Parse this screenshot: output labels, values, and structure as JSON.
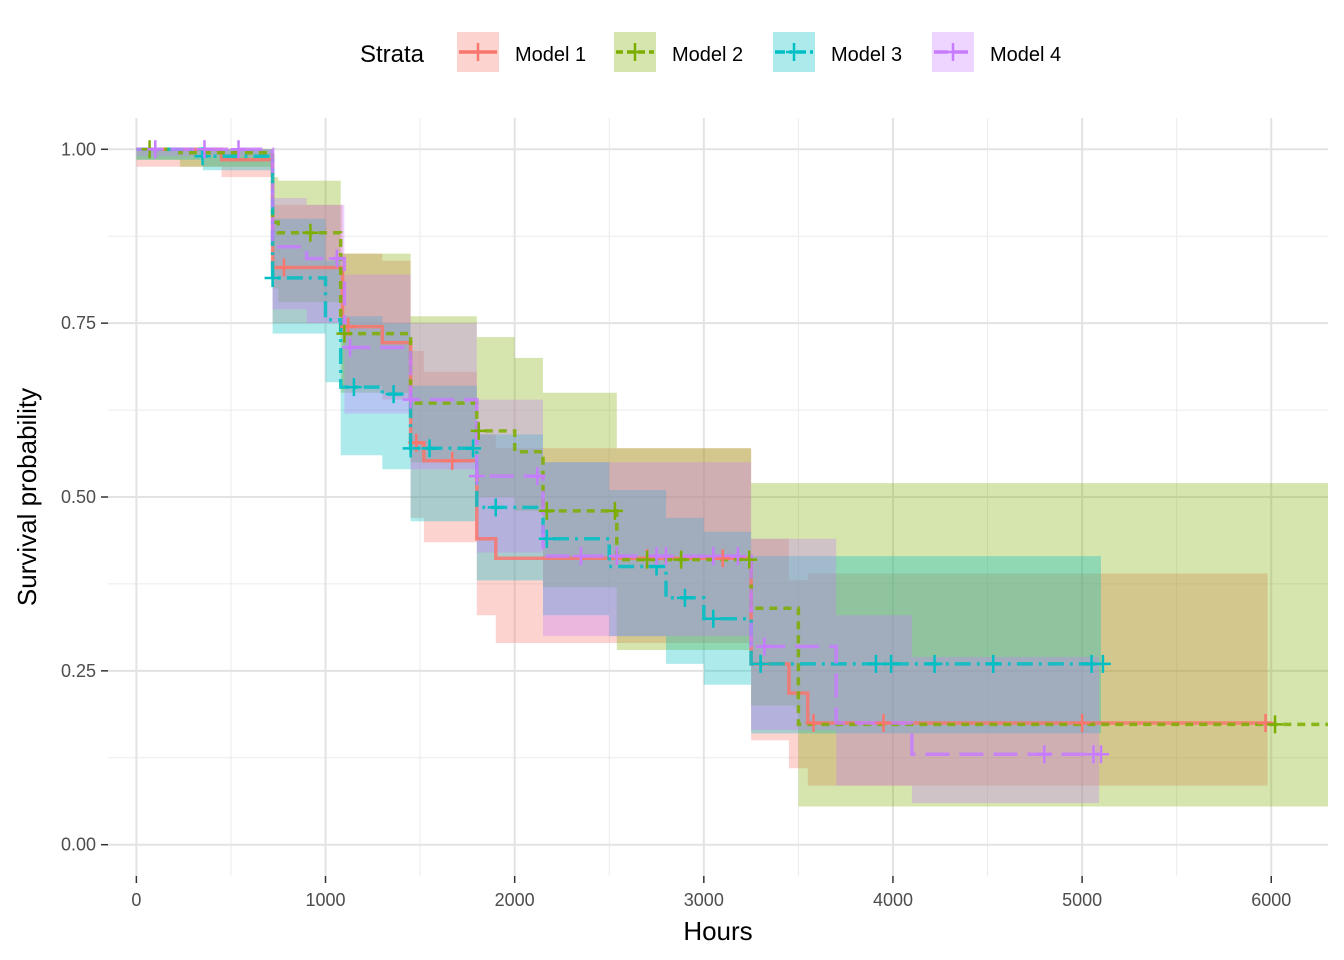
{
  "chart_data": {
    "type": "step",
    "xlabel": "Hours",
    "ylabel": "Survival probability",
    "xlim": [
      -150,
      6300
    ],
    "ylim": [
      -0.045,
      1.045
    ],
    "x_ticks": [
      0,
      1000,
      2000,
      3000,
      4000,
      5000,
      6000
    ],
    "x_tick_labels": [
      "0",
      "1000",
      "2000",
      "3000",
      "4000",
      "5000",
      "6000"
    ],
    "y_ticks": [
      0,
      0.25,
      0.5,
      0.75,
      1
    ],
    "y_tick_labels": [
      "0.00",
      "0.25",
      "0.50",
      "0.75",
      "1.00"
    ],
    "grid": true,
    "legend": {
      "title": "Strata",
      "position": "top"
    },
    "series": [
      {
        "name": "Model 1",
        "color": "#F8766D",
        "dash": "solid",
        "steps": [
          [
            0,
            1.0
          ],
          [
            450,
            0.985
          ],
          [
            720,
            0.83
          ],
          [
            1090,
            0.745
          ],
          [
            1300,
            0.722
          ],
          [
            1450,
            0.578
          ],
          [
            1520,
            0.552
          ],
          [
            1800,
            0.44
          ],
          [
            1900,
            0.412
          ],
          [
            3250,
            0.26
          ],
          [
            3450,
            0.218
          ],
          [
            3550,
            0.175
          ],
          [
            6000,
            0.175
          ]
        ],
        "censor_x": [
          780,
          1120,
          1480,
          1670,
          2700,
          3100,
          3580,
          3950,
          5000,
          5970
        ],
        "ci_steps": [
          [
            0,
            0.975,
            1.0
          ],
          [
            450,
            0.96,
            1.0
          ],
          [
            720,
            0.75,
            0.92
          ],
          [
            1090,
            0.66,
            0.85
          ],
          [
            1300,
            0.64,
            0.84
          ],
          [
            1450,
            0.47,
            0.71
          ],
          [
            1520,
            0.435,
            0.68
          ],
          [
            1800,
            0.33,
            0.59
          ],
          [
            1900,
            0.29,
            0.57
          ],
          [
            3250,
            0.15,
            0.44
          ],
          [
            3450,
            0.11,
            0.38
          ],
          [
            3550,
            0.085,
            0.39
          ],
          [
            5980,
            0.085,
            0.39
          ]
        ]
      },
      {
        "name": "Model 2",
        "color": "#7CAE00",
        "dash": "8,6",
        "steps": [
          [
            0,
            1.0
          ],
          [
            230,
            0.995
          ],
          [
            720,
            0.895
          ],
          [
            750,
            0.88
          ],
          [
            1080,
            0.735
          ],
          [
            1450,
            0.635
          ],
          [
            1800,
            0.595
          ],
          [
            2000,
            0.565
          ],
          [
            2150,
            0.48
          ],
          [
            2540,
            0.41
          ],
          [
            3250,
            0.34
          ],
          [
            3500,
            0.173
          ],
          [
            6300,
            0.173
          ]
        ],
        "censor_x": [
          70,
          920,
          1100,
          1810,
          2170,
          2530,
          2700,
          2880,
          3240,
          6020
        ],
        "ci_steps": [
          [
            0,
            0.985,
            1.0
          ],
          [
            230,
            0.975,
            1.0
          ],
          [
            720,
            0.8,
            0.96
          ],
          [
            750,
            0.78,
            0.955
          ],
          [
            1080,
            0.65,
            0.85
          ],
          [
            1450,
            0.55,
            0.76
          ],
          [
            1800,
            0.5,
            0.73
          ],
          [
            2000,
            0.48,
            0.7
          ],
          [
            2150,
            0.37,
            0.65
          ],
          [
            2540,
            0.28,
            0.57
          ],
          [
            3250,
            0.2,
            0.52
          ],
          [
            3500,
            0.055,
            0.52
          ],
          [
            6300,
            0.055,
            0.52
          ]
        ]
      },
      {
        "name": "Model 3",
        "color": "#00BFC4",
        "dash": "16,6,3,6",
        "steps": [
          [
            0,
            1.0
          ],
          [
            350,
            0.99
          ],
          [
            720,
            0.815
          ],
          [
            1000,
            0.755
          ],
          [
            1080,
            0.658
          ],
          [
            1300,
            0.648
          ],
          [
            1450,
            0.57
          ],
          [
            1800,
            0.485
          ],
          [
            2150,
            0.44
          ],
          [
            2500,
            0.4
          ],
          [
            2800,
            0.355
          ],
          [
            3000,
            0.325
          ],
          [
            3250,
            0.26
          ],
          [
            5100,
            0.26
          ]
        ],
        "censor_x": [
          350,
          720,
          1150,
          1360,
          1450,
          1550,
          1780,
          1900,
          2170,
          2750,
          2900,
          3050,
          3300,
          3910,
          3990,
          4220,
          4530,
          5050,
          5110
        ],
        "ci_steps": [
          [
            0,
            0.985,
            1.0
          ],
          [
            350,
            0.97,
            1.0
          ],
          [
            720,
            0.735,
            0.9
          ],
          [
            1000,
            0.665,
            0.84
          ],
          [
            1080,
            0.56,
            0.76
          ],
          [
            1300,
            0.54,
            0.75
          ],
          [
            1450,
            0.465,
            0.66
          ],
          [
            1800,
            0.38,
            0.59
          ],
          [
            2150,
            0.33,
            0.55
          ],
          [
            2500,
            0.3,
            0.51
          ],
          [
            2800,
            0.26,
            0.47
          ],
          [
            3000,
            0.23,
            0.45
          ],
          [
            3250,
            0.16,
            0.415
          ],
          [
            5100,
            0.16,
            0.415
          ]
        ]
      },
      {
        "name": "Model 4",
        "color": "#C77CFF",
        "dash": "24,10",
        "steps": [
          [
            0,
            1.0
          ],
          [
            720,
            0.86
          ],
          [
            900,
            0.843
          ],
          [
            1100,
            0.715
          ],
          [
            1450,
            0.64
          ],
          [
            1800,
            0.53
          ],
          [
            2150,
            0.415
          ],
          [
            3250,
            0.285
          ],
          [
            3700,
            0.175
          ],
          [
            4100,
            0.13
          ],
          [
            5100,
            0.13
          ]
        ],
        "censor_x": [
          100,
          360,
          540,
          1060,
          1130,
          1450,
          1800,
          2120,
          2350,
          2540,
          2750,
          2800,
          3050,
          3180,
          3320,
          4800,
          5060,
          5100
        ],
        "ci_steps": [
          [
            0,
            0.99,
            1.0
          ],
          [
            720,
            0.77,
            0.93
          ],
          [
            900,
            0.75,
            0.92
          ],
          [
            1100,
            0.62,
            0.82
          ],
          [
            1450,
            0.54,
            0.75
          ],
          [
            1800,
            0.42,
            0.64
          ],
          [
            2150,
            0.3,
            0.55
          ],
          [
            3250,
            0.165,
            0.44
          ],
          [
            3700,
            0.085,
            0.33
          ],
          [
            4100,
            0.06,
            0.27
          ],
          [
            5090,
            0.06,
            0.27
          ]
        ]
      }
    ]
  }
}
